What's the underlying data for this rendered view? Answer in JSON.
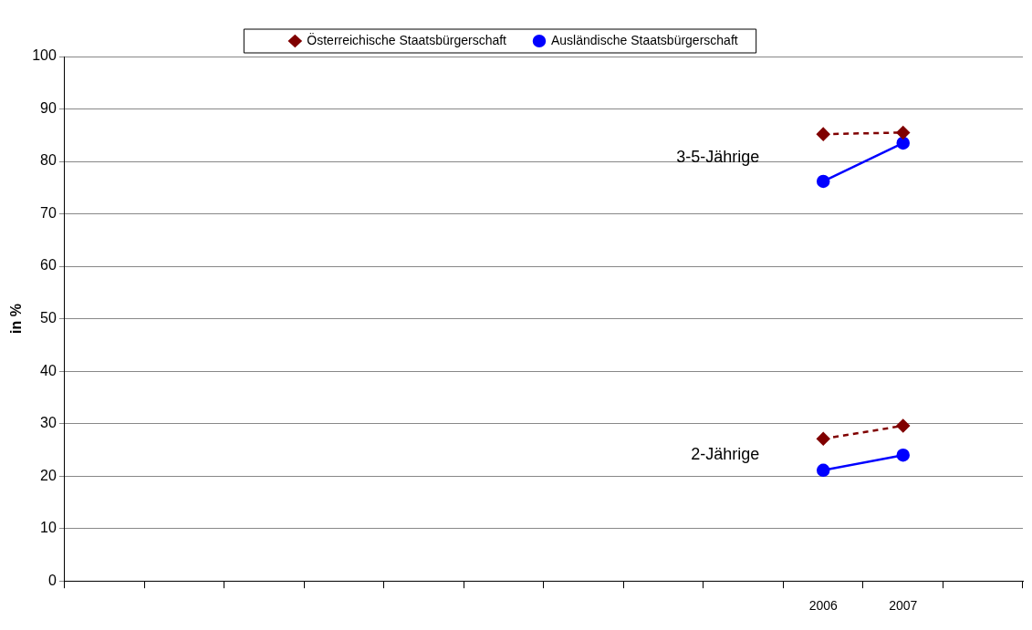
{
  "chart_data": {
    "type": "line",
    "ylabel": "in %",
    "categories": [
      null,
      null,
      null,
      null,
      null,
      null,
      null,
      null,
      null,
      "2006",
      "2007",
      null
    ],
    "series": [
      {
        "name": "Österreichische Staatsbürgerschaft",
        "color": "#800000",
        "marker": "diamond",
        "line_style": "dashed",
        "values": [
          null,
          null,
          null,
          null,
          null,
          null,
          null,
          null,
          null,
          85.2,
          85.5,
          null
        ]
      },
      {
        "name": "Ausländische Staatsbürgerschaft",
        "color": "#0000ff",
        "marker": "circle",
        "line_style": "solid",
        "values": [
          null,
          null,
          null,
          null,
          null,
          null,
          null,
          null,
          null,
          76.2,
          83.5,
          null
        ]
      },
      {
        "color": "#800000",
        "marker": "diamond",
        "line_style": "dashed",
        "values": [
          null,
          null,
          null,
          null,
          null,
          null,
          null,
          null,
          null,
          27.1,
          29.6,
          null
        ]
      },
      {
        "color": "#0000ff",
        "marker": "circle",
        "line_style": "solid",
        "values": [
          null,
          null,
          null,
          null,
          null,
          null,
          null,
          null,
          null,
          21.1,
          24.0,
          null
        ]
      }
    ],
    "annotations": [
      "3-5-Jährige",
      "2-Jährige"
    ],
    "ylim": [
      0,
      100
    ],
    "yticks": [
      0,
      10,
      20,
      30,
      40,
      50,
      60,
      70,
      80,
      90,
      100
    ],
    "grid": "y",
    "legend": "top"
  }
}
